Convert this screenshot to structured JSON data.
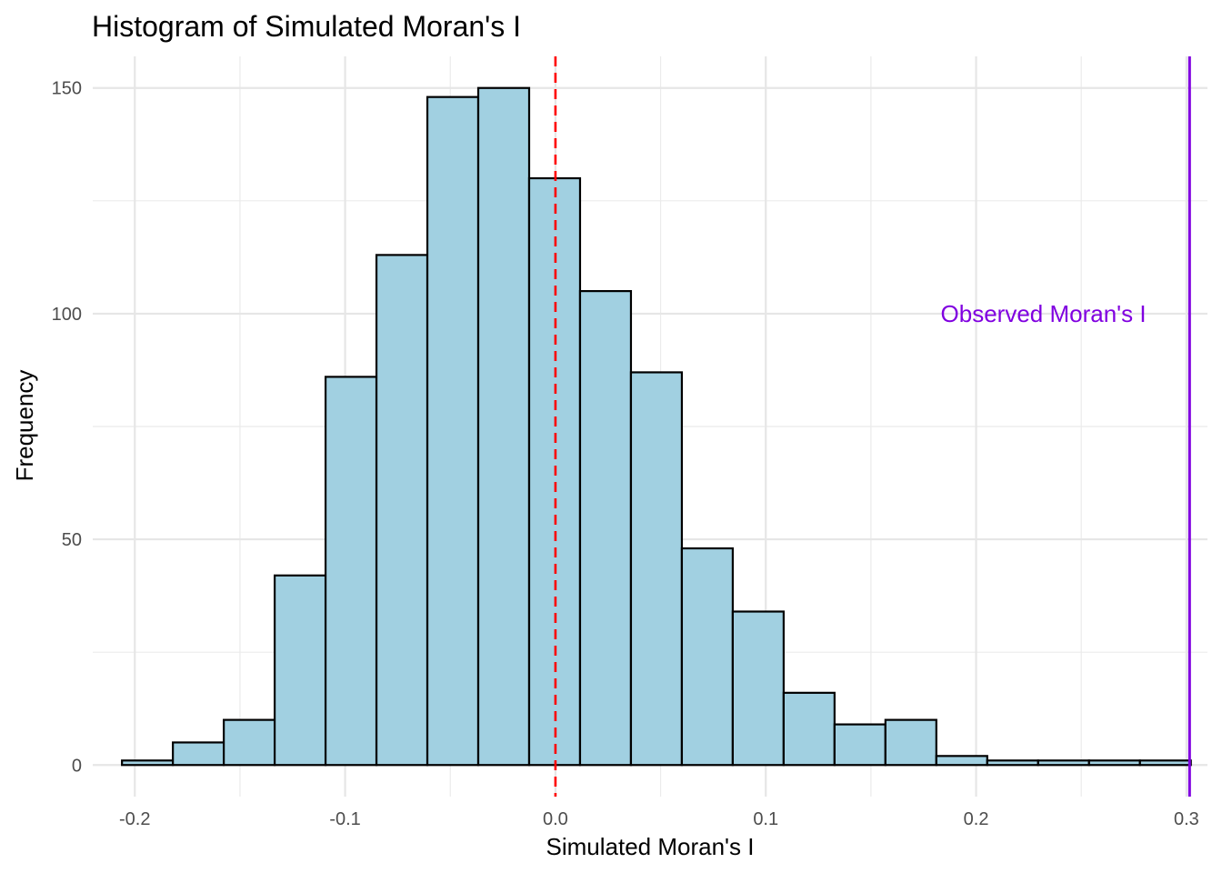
{
  "chart_data": {
    "type": "bar",
    "title": "Histogram of Simulated Moran's I",
    "xlabel": "Simulated Moran's I",
    "ylabel": "Frequency",
    "xlim": [
      -0.22,
      0.31
    ],
    "ylim": [
      -7,
      157
    ],
    "x_ticks": [
      -0.2,
      -0.1,
      0.0,
      0.1,
      0.2,
      0.3
    ],
    "x_tick_labels": [
      "-0.2",
      "-0.1",
      "0.0",
      "0.1",
      "0.2",
      "0.3"
    ],
    "y_ticks": [
      0,
      50,
      100,
      150
    ],
    "y_tick_labels": [
      "0",
      "50",
      "100",
      "150"
    ],
    "bin_width": 0.0242,
    "bin_centers": [
      -0.194,
      -0.1698,
      -0.1456,
      -0.1214,
      -0.0972,
      -0.073,
      -0.0488,
      -0.0246,
      -0.0004,
      0.0238,
      0.048,
      0.0722,
      0.0964,
      0.1206,
      0.1448,
      0.169,
      0.1932,
      0.2174,
      0.2416,
      0.2658,
      0.29
    ],
    "values": [
      1,
      5,
      10,
      42,
      86,
      113,
      148,
      150,
      130,
      105,
      87,
      48,
      34,
      16,
      9,
      10,
      2,
      1,
      1,
      1,
      1
    ],
    "bar_fill": "#a1d0e1",
    "bar_stroke": "#000000",
    "grid": true,
    "legend": "none",
    "reference_lines": [
      {
        "x": 0.0,
        "color": "#ff0000",
        "style": "dashed"
      },
      {
        "x": 0.3015,
        "color": "#8000e0",
        "style": "solid"
      }
    ],
    "annotations": [
      {
        "text": "Observed Moran's I",
        "x": 0.232,
        "y": 100,
        "color": "#8000e0"
      }
    ]
  }
}
